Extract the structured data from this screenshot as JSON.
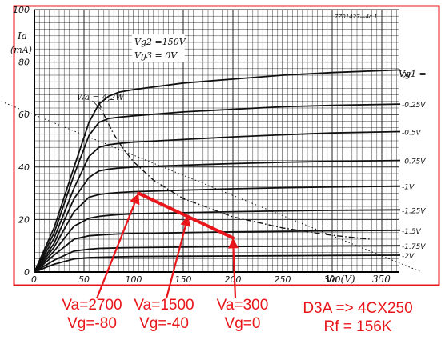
{
  "chart_data": {
    "type": "line",
    "document_code": "7Z01427—4c.1",
    "y_axis": {
      "symbol": "Ia",
      "unit": "(mA)",
      "ticks": [
        "0",
        "20",
        "40",
        "60",
        "80",
        "100"
      ],
      "ylim": [
        0,
        100
      ]
    },
    "x_axis": {
      "tick_values": [
        0,
        50,
        100,
        150,
        200,
        250,
        300,
        350
      ],
      "tick_labels": [
        "0",
        "50",
        "100",
        "150",
        "200",
        "250",
        "300",
        "350"
      ],
      "label": "Va (V)",
      "xlim": [
        0,
        350
      ]
    },
    "conditions": [
      "Vg2 =150V",
      "Vg3 = 0V"
    ],
    "grid": true,
    "curve_group_label": "Vg1 =",
    "series": [
      {
        "name": "0V",
        "x": [
          0,
          20,
          40,
          55,
          65,
          75,
          85,
          100,
          150,
          200,
          250,
          300,
          370
        ],
        "y": [
          0,
          17,
          40,
          57,
          64,
          67,
          68.5,
          69.5,
          72,
          73.5,
          75,
          76,
          77
        ]
      },
      {
        "name": "-0.25V",
        "x": [
          0,
          20,
          40,
          55,
          65,
          75,
          85,
          100,
          150,
          200,
          250,
          300,
          370
        ],
        "y": [
          0,
          15,
          37,
          52,
          57,
          58.5,
          59,
          59.5,
          61,
          62,
          63,
          63.5,
          64
        ]
      },
      {
        "name": "-0.5V",
        "x": [
          0,
          20,
          40,
          55,
          65,
          75,
          85,
          100,
          150,
          200,
          250,
          300,
          370
        ],
        "y": [
          0,
          13,
          32,
          44,
          47.5,
          48.5,
          49,
          49.5,
          50.5,
          51.5,
          52.3,
          53,
          53.5
        ]
      },
      {
        "name": "-0.75V",
        "x": [
          0,
          20,
          40,
          55,
          65,
          75,
          85,
          100,
          150,
          200,
          250,
          300,
          370
        ],
        "y": [
          0,
          11,
          28,
          36,
          38.5,
          39.2,
          39.6,
          40,
          40.7,
          41.3,
          41.8,
          42.2,
          42.5
        ]
      },
      {
        "name": "-1V",
        "x": [
          0,
          20,
          40,
          55,
          65,
          75,
          85,
          100,
          150,
          200,
          250,
          300,
          370
        ],
        "y": [
          0,
          9.5,
          23,
          28.5,
          29.5,
          30,
          30.3,
          30.6,
          31.2,
          31.7,
          32.1,
          32.4,
          32.7
        ]
      },
      {
        "name": "-1.25V",
        "x": [
          0,
          20,
          40,
          55,
          65,
          75,
          85,
          100,
          150,
          200,
          250,
          300,
          370
        ],
        "y": [
          0,
          8,
          17.5,
          20.5,
          21.2,
          21.6,
          21.9,
          22.2,
          22.6,
          23,
          23.3,
          23.5,
          23.7
        ]
      },
      {
        "name": "-1.5V",
        "x": [
          0,
          20,
          40,
          55,
          65,
          75,
          85,
          100,
          150,
          200,
          250,
          300,
          370
        ],
        "y": [
          0,
          6.5,
          12.5,
          13.8,
          14.1,
          14.3,
          14.5,
          14.7,
          15,
          15.3,
          15.5,
          15.7,
          15.9
        ]
      },
      {
        "name": "-1.75V",
        "x": [
          0,
          20,
          40,
          55,
          65,
          75,
          85,
          100,
          150,
          200,
          250,
          300,
          370
        ],
        "y": [
          0,
          4.5,
          8,
          8.7,
          9,
          9.1,
          9.2,
          9.3,
          9.5,
          9.7,
          9.8,
          9.9,
          10
        ]
      },
      {
        "name": "-2V",
        "x": [
          0,
          20,
          40,
          55,
          65,
          75,
          85,
          100,
          150,
          200,
          250,
          300,
          370
        ],
        "y": [
          0,
          3,
          5,
          5.5,
          5.6,
          5.7,
          5.8,
          5.9,
          6,
          6.1,
          6.2,
          6.3,
          6.4
        ]
      }
    ],
    "extra_curves": [
      {
        "label": "Wa = 4,2W",
        "x": [
          65,
          70,
          80,
          90,
          100,
          120,
          150,
          200,
          250,
          300,
          340
        ],
        "y": [
          64.6,
          60,
          52.5,
          46.7,
          42,
          35,
          28,
          21,
          16.8,
          14,
          12.4
        ]
      },
      {
        "label": "",
        "x": [
          -40,
          390
        ],
        "y": [
          66,
          0
        ]
      }
    ],
    "load_line": {
      "color": "#e8161b",
      "x": [
        105,
        200
      ],
      "y": [
        30,
        13
      ]
    },
    "annotations": [
      {
        "lines": [
          "Va=2700",
          "Vg=-80"
        ],
        "arrow_to": [
          105,
          30
        ]
      },
      {
        "lines": [
          "Va=1500",
          "Vg=-40"
        ],
        "arrow_to": [
          155,
          21.5
        ]
      },
      {
        "lines": [
          "Va=300",
          "Vg=0"
        ],
        "arrow_to": [
          200,
          13
        ]
      },
      {
        "lines": [
          "D3A => 4CX250",
          "Rf = 156K"
        ],
        "arrow_to": null
      }
    ],
    "colors": {
      "curves": "#111111",
      "grid": "#222222",
      "annotation": "#e8161b",
      "frame": "#e8161b"
    }
  }
}
